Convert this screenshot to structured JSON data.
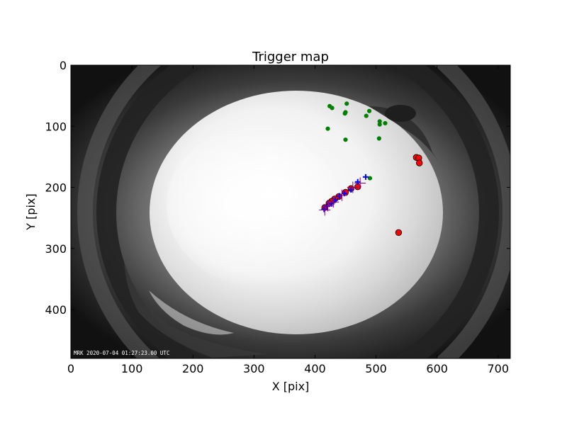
{
  "chart_data": {
    "type": "scatter",
    "title": "Trigger map",
    "xlabel": "X [pix]",
    "ylabel": "Y [pix]",
    "xlim": [
      0,
      720
    ],
    "ylim": [
      480,
      0
    ],
    "y_inverted": true,
    "xticks": [
      0,
      100,
      200,
      300,
      400,
      500,
      600,
      700
    ],
    "yticks": [
      0,
      100,
      200,
      300,
      400
    ],
    "background_image": "all-sky fisheye camera frame (grayscale)",
    "timestamp_text": "MRK 2020-07-04 01:27:23.00 UTC",
    "grid": false,
    "legend": "none",
    "series": [
      {
        "marker": "circle",
        "color": "#008000",
        "points": [
          [
            424,
            67
          ],
          [
            428,
            70
          ],
          [
            452,
            63
          ],
          [
            449,
            79
          ],
          [
            450,
            77
          ],
          [
            489,
            75
          ],
          [
            484,
            83
          ],
          [
            506,
            92
          ],
          [
            506,
            97
          ],
          [
            515,
            95
          ],
          [
            421,
            104
          ],
          [
            505,
            120
          ],
          [
            450,
            122
          ],
          [
            490,
            185
          ]
        ]
      },
      {
        "marker": "circle-large",
        "color": "#ff0000",
        "points": [
          [
            566,
            151
          ],
          [
            570,
            152
          ],
          [
            571,
            160
          ],
          [
            537,
            274
          ],
          [
            470,
            199
          ],
          [
            459,
            202
          ],
          [
            450,
            208
          ],
          [
            439,
            215
          ],
          [
            432,
            219
          ],
          [
            427,
            223
          ],
          [
            423,
            226
          ],
          [
            416,
            233
          ]
        ]
      },
      {
        "marker": "plus",
        "color": "#0000ff",
        "points": [
          [
            483,
            183
          ],
          [
            470,
            191
          ],
          [
            459,
            204
          ],
          [
            448,
            210
          ],
          [
            440,
            214
          ],
          [
            433,
            221
          ],
          [
            427,
            227
          ],
          [
            420,
            231
          ],
          [
            415,
            236
          ]
        ]
      },
      {
        "marker": "plus-large",
        "color": "#800080",
        "points": [
          [
            474,
            193
          ],
          [
            462,
            200
          ],
          [
            444,
            213
          ],
          [
            430,
            224
          ],
          [
            421,
            230
          ],
          [
            416,
            237
          ]
        ]
      }
    ]
  }
}
